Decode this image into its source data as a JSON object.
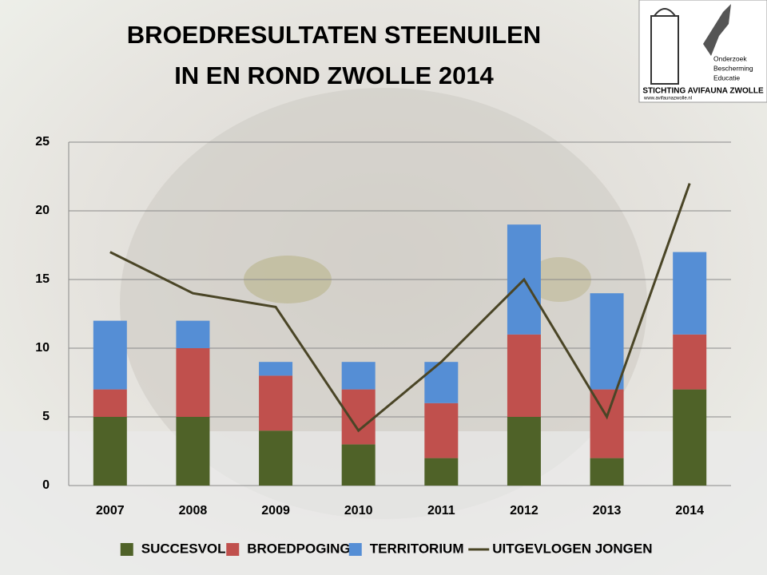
{
  "chart_data": {
    "type": "stacked-bar-line",
    "title": [
      "BROEDRESULTATEN STEENUILEN",
      "IN EN ROND ZWOLLE 2014"
    ],
    "categories": [
      "2007",
      "2008",
      "2009",
      "2010",
      "2011",
      "2012",
      "2013",
      "2014"
    ],
    "series": [
      {
        "name": "SUCCESVOL",
        "type": "bar",
        "color": "#4f6228",
        "values": [
          5,
          5,
          4,
          3,
          2,
          5,
          2,
          7
        ]
      },
      {
        "name": "BROEDPOGING",
        "type": "bar",
        "color": "#c0504d",
        "values": [
          2,
          5,
          4,
          4,
          4,
          6,
          5,
          4
        ]
      },
      {
        "name": "TERRITORIUM",
        "type": "bar",
        "color": "#558ed5",
        "values": [
          5,
          2,
          1,
          2,
          3,
          8,
          7,
          6
        ]
      },
      {
        "name": "UITGEVLOGEN JONGEN",
        "type": "line",
        "color": "#4a4526",
        "values": [
          17,
          14,
          13,
          4,
          9,
          15,
          5,
          22
        ]
      }
    ],
    "ylim": [
      0,
      25
    ],
    "yticks": [
      0,
      5,
      10,
      15,
      20,
      25
    ],
    "grid": true,
    "legend": "bottom"
  },
  "logo": {
    "bullets": [
      "Onderzoek",
      "Bescherming",
      "Educatie"
    ],
    "name": "STICHTING AVIFAUNA ZWOLLE",
    "url": "www.avifaunazwolle.nl"
  }
}
